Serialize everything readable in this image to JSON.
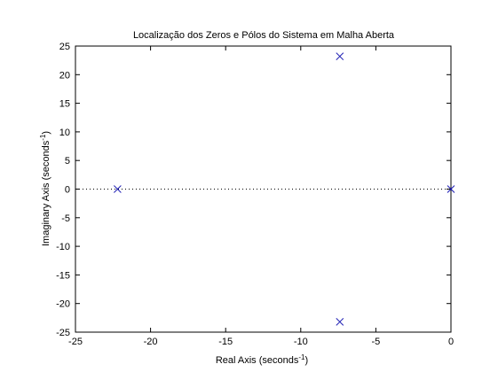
{
  "chart_data": {
    "type": "scatter",
    "title": "Localização dos Zeros e Pólos do Sistema em Malha Aberta",
    "xlabel": {
      "text": "Real Axis (seconds",
      "superscript": "-1",
      "suffix": ")"
    },
    "ylabel": {
      "text": "Imaginary Axis (seconds",
      "superscript": "-1",
      "suffix": ")"
    },
    "xlim": [
      -25,
      0
    ],
    "ylim": [
      -25,
      25
    ],
    "xticks": [
      -25,
      -20,
      -15,
      -10,
      -5,
      0
    ],
    "yticks": [
      -25,
      -20,
      -15,
      -10,
      -5,
      0,
      5,
      10,
      15,
      20,
      25
    ],
    "grid": false,
    "zero_line": "dotted",
    "series": [
      {
        "marker": "x",
        "color": "#1f1fb4",
        "points": [
          {
            "x": -22.2,
            "y": 0
          },
          {
            "x": -7.4,
            "y": 23.2
          },
          {
            "x": -7.4,
            "y": -23.2
          },
          {
            "x": 0,
            "y": 0
          }
        ]
      }
    ]
  }
}
